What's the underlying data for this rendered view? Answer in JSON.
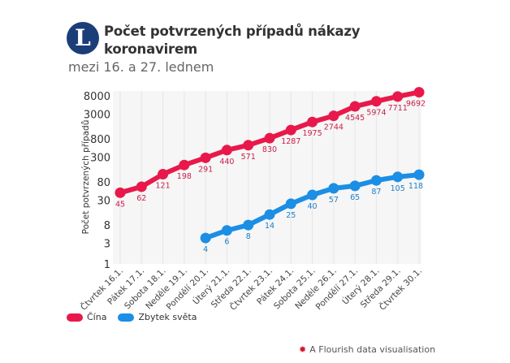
{
  "header": {
    "logo_letter": "L",
    "title": "Počet potvrzených případů nákazy koronavirem",
    "subtitle": "mezi 16. a 27. lednem"
  },
  "chart_data": {
    "type": "line",
    "title": "Počet potvrzených případů nákazy koronavirem",
    "subtitle": "mezi 16. a 27. lednem",
    "xlabel": "",
    "ylabel": "Počet potvrzených případů",
    "yscale": "log",
    "ylim": [
      1,
      10000
    ],
    "yticks": [
      1,
      3,
      8,
      30,
      80,
      300,
      800,
      3000,
      8000
    ],
    "ytick_labels": [
      "1",
      "3",
      "8",
      "30",
      "80",
      "300",
      "800",
      "3000",
      "8000"
    ],
    "grid": "vertical",
    "categories": [
      "Čtvrtek 16.1.",
      "Pátek 17.1.",
      "Sobota 18.1.",
      "Neděle 19.1.",
      "Pondělí 20.1.",
      "Úterý 21.1.",
      "Středa 22.1.",
      "Čtvrtek 23.1.",
      "Pátek 24.1.",
      "Sobota 25.1.",
      "Neděle 26.1.",
      "Pondělí 27.1.",
      "Úterý 28.1.",
      "Středa 29.1.",
      "Čtvrtek 30.1."
    ],
    "series": [
      {
        "name": "Čína",
        "color": "#e8194a",
        "label_color": "#c8204a",
        "values": [
          45,
          62,
          121,
          198,
          291,
          440,
          571,
          830,
          1287,
          1975,
          2744,
          4545,
          5974,
          7711,
          9692
        ]
      },
      {
        "name": "Zbytek světa",
        "color": "#1b8ee6",
        "label_color": "#1c7fc9",
        "values": [
          null,
          null,
          null,
          null,
          4,
          6,
          8,
          14,
          25,
          40,
          57,
          65,
          87,
          105,
          118
        ]
      }
    ],
    "legend": "bottom-left"
  },
  "footer": {
    "credit": "A Flourish data visualisation"
  }
}
